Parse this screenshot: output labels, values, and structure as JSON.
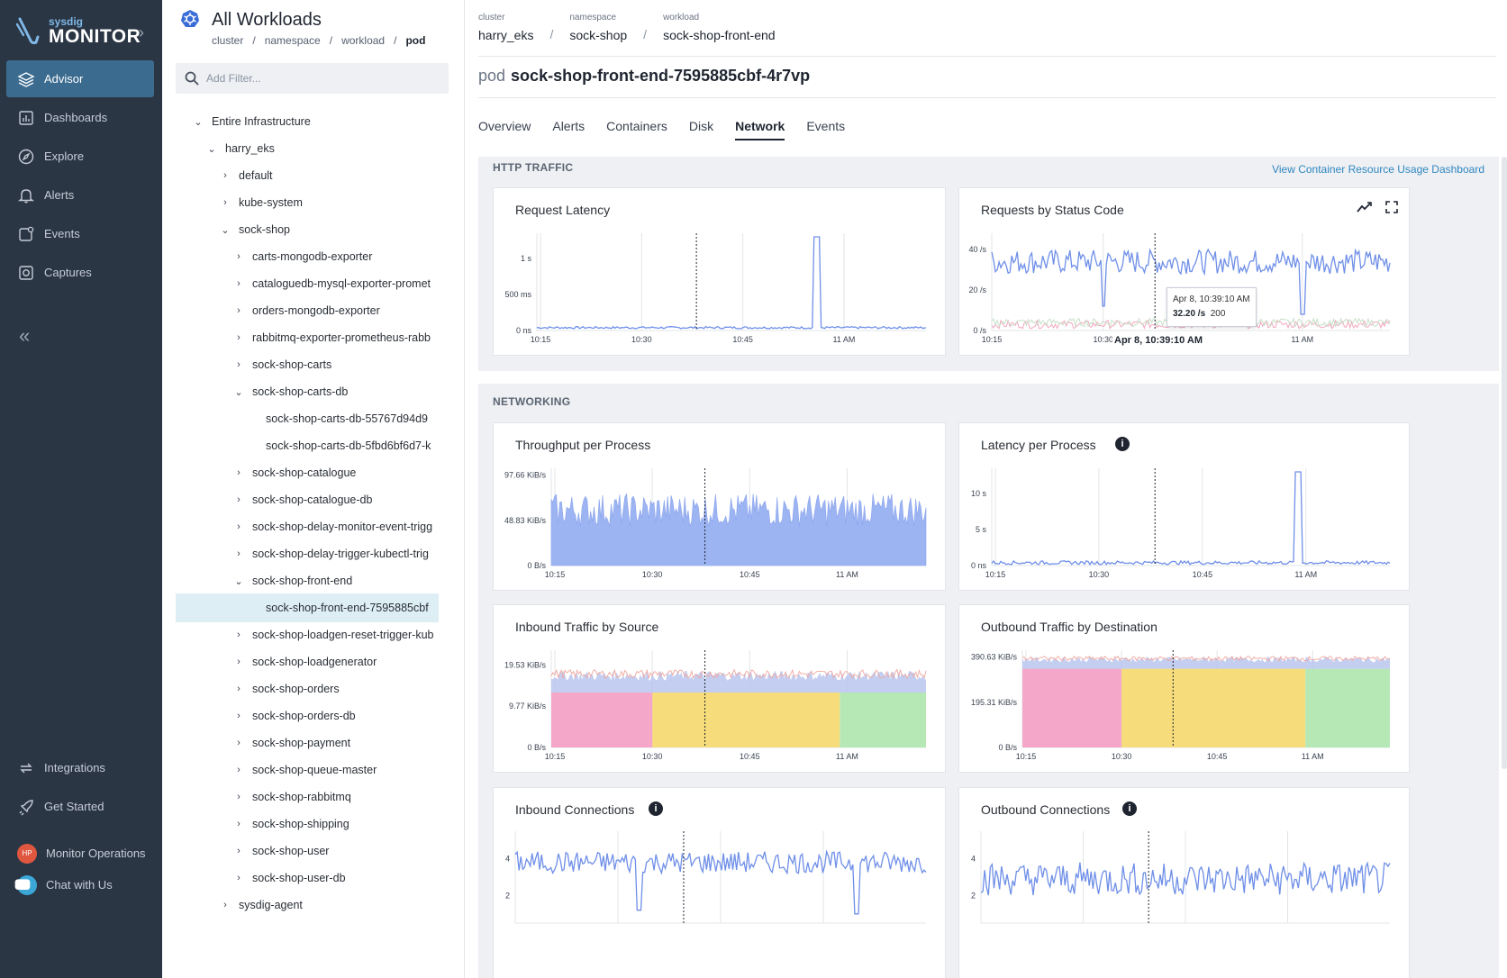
{
  "brand": {
    "small": "sysdig",
    "big": "MONITOR"
  },
  "nav": {
    "items": [
      {
        "label": "Advisor",
        "icon": "layers-icon",
        "active": true
      },
      {
        "label": "Dashboards",
        "icon": "dashboard-icon"
      },
      {
        "label": "Explore",
        "icon": "compass-icon"
      },
      {
        "label": "Alerts",
        "icon": "bell-icon"
      },
      {
        "label": "Events",
        "icon": "events-icon"
      },
      {
        "label": "Captures",
        "icon": "camera-icon"
      }
    ],
    "collapse": "«",
    "bottom": [
      {
        "label": "Integrations",
        "icon": "integrations-icon"
      },
      {
        "label": "Get Started",
        "icon": "rocket-icon"
      },
      {
        "label": "Monitor Operations",
        "avatar": "HP"
      },
      {
        "label": "Chat with Us",
        "icon": "chat-icon"
      }
    ]
  },
  "tree": {
    "title": "All Workloads",
    "crumbs": [
      "cluster",
      "/",
      "namespace",
      "/",
      "workload",
      "/",
      "pod"
    ],
    "filter_placeholder": "Add Filter...",
    "nodes": [
      {
        "label": "Entire Infrastructure",
        "level": 0,
        "chevron": "down"
      },
      {
        "label": "harry_eks",
        "level": 1,
        "chevron": "down"
      },
      {
        "label": "default",
        "level": 2,
        "chevron": "right"
      },
      {
        "label": "kube-system",
        "level": 2,
        "chevron": "right"
      },
      {
        "label": "sock-shop",
        "level": 2,
        "chevron": "down"
      },
      {
        "label": "carts-mongodb-exporter",
        "level": 3,
        "chevron": "right"
      },
      {
        "label": "cataloguedb-mysql-exporter-promet",
        "level": 3,
        "chevron": "right"
      },
      {
        "label": "orders-mongodb-exporter",
        "level": 3,
        "chevron": "right"
      },
      {
        "label": "rabbitmq-exporter-prometheus-rabb",
        "level": 3,
        "chevron": "right"
      },
      {
        "label": "sock-shop-carts",
        "level": 3,
        "chevron": "right"
      },
      {
        "label": "sock-shop-carts-db",
        "level": 3,
        "chevron": "down"
      },
      {
        "label": "sock-shop-carts-db-55767d94d9",
        "level": 4,
        "chevron": ""
      },
      {
        "label": "sock-shop-carts-db-5fbd6bf6d7-k",
        "level": 4,
        "chevron": ""
      },
      {
        "label": "sock-shop-catalogue",
        "level": 3,
        "chevron": "right"
      },
      {
        "label": "sock-shop-catalogue-db",
        "level": 3,
        "chevron": "right"
      },
      {
        "label": "sock-shop-delay-monitor-event-trigg",
        "level": 3,
        "chevron": "right"
      },
      {
        "label": "sock-shop-delay-trigger-kubectl-trig",
        "level": 3,
        "chevron": "right"
      },
      {
        "label": "sock-shop-front-end",
        "level": 3,
        "chevron": "down"
      },
      {
        "label": "sock-shop-front-end-7595885cbf",
        "level": 4,
        "chevron": "",
        "selected": true
      },
      {
        "label": "sock-shop-loadgen-reset-trigger-kub",
        "level": 3,
        "chevron": "right"
      },
      {
        "label": "sock-shop-loadgenerator",
        "level": 3,
        "chevron": "right"
      },
      {
        "label": "sock-shop-orders",
        "level": 3,
        "chevron": "right"
      },
      {
        "label": "sock-shop-orders-db",
        "level": 3,
        "chevron": "right"
      },
      {
        "label": "sock-shop-payment",
        "level": 3,
        "chevron": "right"
      },
      {
        "label": "sock-shop-queue-master",
        "level": 3,
        "chevron": "right"
      },
      {
        "label": "sock-shop-rabbitmq",
        "level": 3,
        "chevron": "right"
      },
      {
        "label": "sock-shop-shipping",
        "level": 3,
        "chevron": "right"
      },
      {
        "label": "sock-shop-user",
        "level": 3,
        "chevron": "right"
      },
      {
        "label": "sock-shop-user-db",
        "level": 3,
        "chevron": "right"
      },
      {
        "label": "sysdig-agent",
        "level": 2,
        "chevron": "right"
      }
    ]
  },
  "main": {
    "crumbs": [
      {
        "label": "cluster",
        "value": "harry_eks"
      },
      {
        "label": "namespace",
        "value": "sock-shop"
      },
      {
        "label": "workload",
        "value": "sock-shop-front-end"
      }
    ],
    "crumb_sep": "/",
    "pod_kind": "pod",
    "pod_name": "sock-shop-front-end-7595885cbf-4r7vp",
    "tabs": [
      "Overview",
      "Alerts",
      "Containers",
      "Disk",
      "Network",
      "Events"
    ],
    "active_tab": "Network",
    "http_section": "HTTP TRAFFIC",
    "dashboard_link": "View Container Resource Usage Dashboard",
    "net_section": "NETWORKING"
  },
  "tooltip": {
    "time": "Apr 8, 10:39:10 AM",
    "value": "32.20 /s",
    "code": "200",
    "axis_label": "Apr 8, 10:39:10 AM"
  },
  "chart_data": [
    {
      "id": "latency",
      "type": "line",
      "title": "Request Latency",
      "yticks": [
        "1 s",
        "500 ms",
        "0 ns"
      ],
      "ytickvals": [
        1000,
        500,
        0
      ],
      "ylim": [
        0,
        1350
      ],
      "xticks": [
        "10:15",
        "10:30",
        "10:45",
        "11 AM"
      ],
      "series": [
        {
          "color": "#6f8fe8",
          "base": 40,
          "noise": 15,
          "spikes": [
            [
              0.72,
              1300
            ]
          ]
        }
      ]
    },
    {
      "id": "status",
      "type": "line",
      "title": "Requests by Status Code",
      "yticks": [
        "40 /s",
        "20 /s",
        "0 /s"
      ],
      "ytickvals": [
        40,
        20,
        0
      ],
      "ylim": [
        0,
        48
      ],
      "xticks": [
        "10:15",
        "10:30",
        "11 AM"
      ],
      "series": [
        {
          "name": "200",
          "color": "#6f8fe8",
          "base": 34,
          "noise": 6,
          "dips": [
            [
              0.28,
              12
            ],
            [
              0.78,
              8
            ]
          ]
        },
        {
          "color": "#f4a7c0",
          "base": 3,
          "noise": 2
        },
        {
          "color": "#c8e0c8",
          "base": 4,
          "noise": 2
        }
      ]
    },
    {
      "id": "throughput",
      "type": "area",
      "title": "Throughput per Process",
      "yticks": [
        "97.66 KiB/s",
        "48.83 KiB/s",
        "0 B/s"
      ],
      "ytickvals": [
        97.66,
        48.83,
        0
      ],
      "ylim": [
        0,
        105
      ],
      "xticks": [
        "10:15",
        "10:30",
        "10:45",
        "11 AM"
      ],
      "series": [
        {
          "color": "#9db4f2",
          "base": 60,
          "noise": 18
        }
      ]
    },
    {
      "id": "procLatency",
      "type": "line",
      "title": "Latency per Process",
      "info": true,
      "yticks": [
        "10 s",
        "5 s",
        "0 ns"
      ],
      "ytickvals": [
        10,
        5,
        0
      ],
      "ylim": [
        0,
        13.5
      ],
      "xticks": [
        "10:15",
        "10:30",
        "10:45",
        "11 AM"
      ],
      "series": [
        {
          "color": "#6f8fe8",
          "base": 0.4,
          "noise": 0.25,
          "spikes": [
            [
              0.77,
              13
            ]
          ]
        }
      ]
    },
    {
      "id": "inbound",
      "type": "stacked",
      "title": "Inbound Traffic by Source",
      "yticks": [
        "19.53 KiB/s",
        "9.77 KiB/s",
        "0 B/s"
      ],
      "ytickvals": [
        19.53,
        9.77,
        0
      ],
      "ylim": [
        0,
        23
      ],
      "xticks": [
        "10:15",
        "10:30",
        "10:45",
        "11 AM"
      ],
      "segments": [
        {
          "from": 0,
          "to": 0.27,
          "color": "#f4a7c8"
        },
        {
          "from": 0.27,
          "to": 0.77,
          "color": "#f6dc7a"
        },
        {
          "from": 0.77,
          "to": 1,
          "color": "#b6e8b6"
        }
      ],
      "level": 13,
      "topLevel": 17
    },
    {
      "id": "outbound",
      "type": "stacked",
      "title": "Outbound Traffic by Destination",
      "yticks": [
        "390.63 KiB/s",
        "195.31 KiB/s",
        "0 B/s"
      ],
      "ytickvals": [
        390.63,
        195.31,
        0
      ],
      "ylim": [
        0,
        420
      ],
      "xticks": [
        "10:15",
        "10:30",
        "10:45",
        "11 AM"
      ],
      "segments": [
        {
          "from": 0,
          "to": 0.27,
          "color": "#f4a7c8"
        },
        {
          "from": 0.27,
          "to": 0.77,
          "color": "#f6dc7a"
        },
        {
          "from": 0.77,
          "to": 1,
          "color": "#b6e8b6"
        }
      ],
      "level": 340,
      "topLevel": 380
    },
    {
      "id": "inConn",
      "type": "line",
      "title": "Inbound Connections",
      "info": true,
      "yticks": [
        "4",
        "2"
      ],
      "ytickvals": [
        4,
        2
      ],
      "ylim": [
        0.5,
        5.5
      ],
      "xticks": [],
      "series": [
        {
          "color": "#6f8fe8",
          "base": 3.8,
          "noise": 0.6,
          "dips": [
            [
              0.3,
              1.2
            ],
            [
              0.83,
              1.0
            ]
          ]
        }
      ]
    },
    {
      "id": "outConn",
      "type": "line",
      "title": "Outbound Connections",
      "info": true,
      "yticks": [
        "4",
        "2"
      ],
      "ytickvals": [
        4,
        2
      ],
      "ylim": [
        0.5,
        5.5
      ],
      "xticks": [],
      "series": [
        {
          "color": "#6f8fe8",
          "base": 2.9,
          "noise": 0.9
        }
      ]
    }
  ]
}
